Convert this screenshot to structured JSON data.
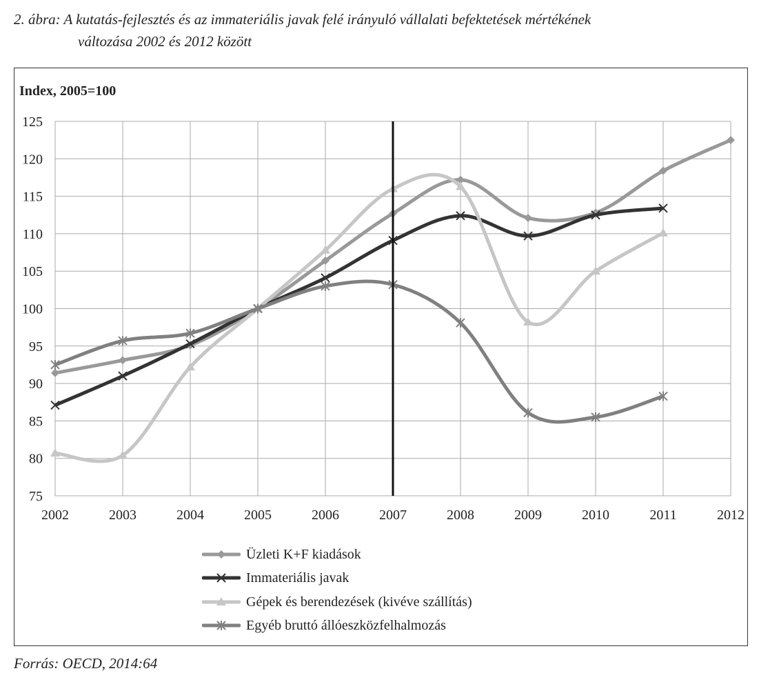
{
  "caption": {
    "line1": "2. ábra: A kutatás-fejlesztés és az immateriális javak felé irányuló vállalati befektetések mértékének",
    "line2": "változása 2002 és 2012 között"
  },
  "source": "Forrás: OECD, 2014:64",
  "chart_data": {
    "type": "line",
    "title": "",
    "ylabel": "Index, 2005=100",
    "xlabel": "",
    "x": [
      2002,
      2003,
      2004,
      2005,
      2006,
      2007,
      2008,
      2009,
      2010,
      2011,
      2012
    ],
    "ylim": [
      75,
      125
    ],
    "yticks": [
      75,
      80,
      85,
      90,
      95,
      100,
      105,
      110,
      115,
      120,
      125
    ],
    "grid": true,
    "smooth": true,
    "vertical_marker_x": 2007,
    "legend_position": "bottom",
    "series": [
      {
        "name": "Üzleti K+F kiadások",
        "marker": "diamond",
        "color": "#999999",
        "values": [
          91.4,
          93.1,
          95.1,
          100,
          106.4,
          112.7,
          117.2,
          112.1,
          112.8,
          118.4,
          122.5
        ]
      },
      {
        "name": "Immateriális javak",
        "marker": "x",
        "color": "#333333",
        "values": [
          87.1,
          91.0,
          95.3,
          100,
          104.1,
          109.1,
          112.4,
          109.7,
          112.5,
          113.4,
          null
        ]
      },
      {
        "name": "Gépek és berendezések (kivéve szállítás)",
        "marker": "triangle",
        "color": "#c6c6c6",
        "values": [
          80.7,
          80.4,
          92.2,
          100,
          107.8,
          116.0,
          116.3,
          98.2,
          105.0,
          110.1,
          null
        ]
      },
      {
        "name": "Egyéb bruttó állóeszközfelhalmozás",
        "marker": "asterisk",
        "color": "#808080",
        "values": [
          92.5,
          95.7,
          96.7,
          100,
          103.0,
          103.2,
          98.1,
          86.1,
          85.5,
          88.3,
          null
        ]
      }
    ]
  }
}
